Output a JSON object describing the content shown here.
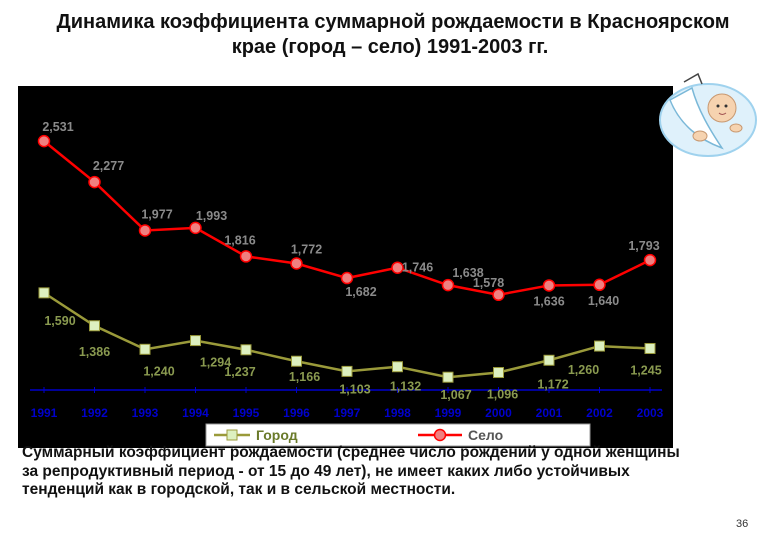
{
  "slide": {
    "title_line1": "Динамика коэффициента суммарной рождаемости в Красноярском",
    "title_line2": "крае (город – село) 1991-2003 гг.",
    "description": "Суммарный коэффициент рождаемости (среднее число рождений у одной женщины за репродуктивный период - от 15 до 49 лет), не имеет каких либо устойчивых тенденций как в городской, так и в сельской местности.",
    "page_number": "36"
  },
  "chart_data": {
    "type": "line",
    "title": "",
    "xlabel": "",
    "ylabel": "",
    "categories": [
      "1991",
      "1992",
      "1993",
      "1994",
      "1995",
      "1996",
      "1997",
      "1998",
      "1999",
      "2000",
      "2001",
      "2002",
      "2003"
    ],
    "ylim": [
      0,
      2.8
    ],
    "grid": false,
    "legend_position": "bottom",
    "series": [
      {
        "name": "Город",
        "values": [
          1.59,
          1.386,
          1.24,
          1.294,
          1.237,
          1.166,
          1.103,
          1.132,
          1.067,
          1.096,
          1.172,
          1.26,
          1.245
        ],
        "labels": [
          "1,590",
          "1,386",
          "1,240",
          "1,294",
          "1,237",
          "1,166",
          "1,103",
          "1,132",
          "1,067",
          "1,096",
          "1,172",
          "1,260",
          "1,245"
        ],
        "color": "#9a9a3a",
        "marker_fill": "#ddf0c0",
        "label_color": "#8a9a50"
      },
      {
        "name": "Село",
        "values": [
          2.531,
          2.277,
          1.977,
          1.993,
          1.816,
          1.772,
          1.682,
          1.746,
          1.638,
          1.578,
          1.636,
          1.64,
          1.793
        ],
        "labels": [
          "2,531",
          "2,277",
          "1,977",
          "1,993",
          "1,816",
          "1,772",
          "1,682",
          "1,746",
          "1,638",
          "1,578",
          "1,636",
          "1,640",
          "1,793"
        ],
        "color": "#ff0000",
        "marker_fill": "#f08080",
        "label_color": "#8a8a8a"
      }
    ],
    "background": "#000000",
    "axis_color": "#0000cc"
  }
}
